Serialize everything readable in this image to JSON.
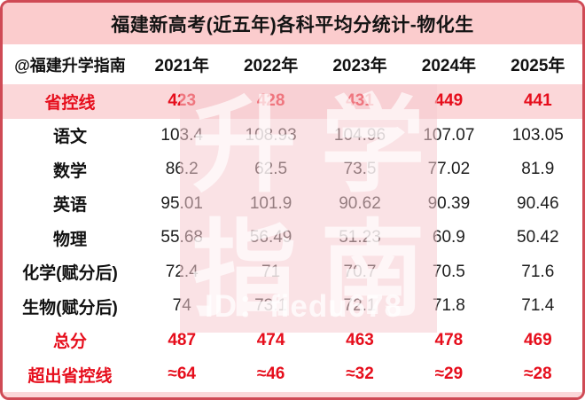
{
  "title": "福建新高考(近五年)各科平均分统计-物化生",
  "header": {
    "source_label": "@福建升学指南",
    "years": [
      "2021年",
      "2022年",
      "2023年",
      "2024年",
      "2025年"
    ]
  },
  "chart_data": {
    "type": "table",
    "title": "福建新高考(近五年)各科平均分统计-物化生",
    "columns": [
      "@福建升学指南",
      "2021年",
      "2022年",
      "2023年",
      "2024年",
      "2025年"
    ],
    "rows": [
      {
        "label": "省控线",
        "values": [
          "423",
          "428",
          "431",
          "449",
          "441"
        ],
        "style": "highlight"
      },
      {
        "label": "语文",
        "values": [
          "103.4",
          "108.93",
          "104.96",
          "107.07",
          "103.05"
        ],
        "style": "normal"
      },
      {
        "label": "数学",
        "values": [
          "86.2",
          "62.5",
          "73.5",
          "77.02",
          "81.9"
        ],
        "style": "normal"
      },
      {
        "label": "英语",
        "values": [
          "95.01",
          "101.9",
          "90.62",
          "90.39",
          "90.46"
        ],
        "style": "normal"
      },
      {
        "label": "物理",
        "values": [
          "55.68",
          "56.49",
          "51.23",
          "60.9",
          "50.42"
        ],
        "style": "normal"
      },
      {
        "label": "化学(赋分后)",
        "values": [
          "72.4",
          "71",
          "70.7",
          "70.5",
          "71.6"
        ],
        "style": "normal"
      },
      {
        "label": "生物(赋分后)",
        "values": [
          "74",
          "73.1",
          "72.1",
          "71.8",
          "71.4"
        ],
        "style": "normal"
      },
      {
        "label": "总分",
        "values": [
          "487",
          "474",
          "463",
          "478",
          "469"
        ],
        "style": "red"
      },
      {
        "label": "超出省控线",
        "values": [
          "≈64",
          "≈46",
          "≈32",
          "≈29",
          "≈28"
        ],
        "style": "red"
      }
    ]
  },
  "watermark": {
    "seal_chars": [
      "升",
      "学",
      "指",
      "南"
    ],
    "id_text": "ID：fiedu678"
  },
  "colors": {
    "border": "#cf4a55",
    "title_bg": "#fbcccd",
    "highlight_row_bg": "#fbd7d9",
    "red_text": "#e60e1c",
    "watermark_pink": "#f6cbd0"
  }
}
